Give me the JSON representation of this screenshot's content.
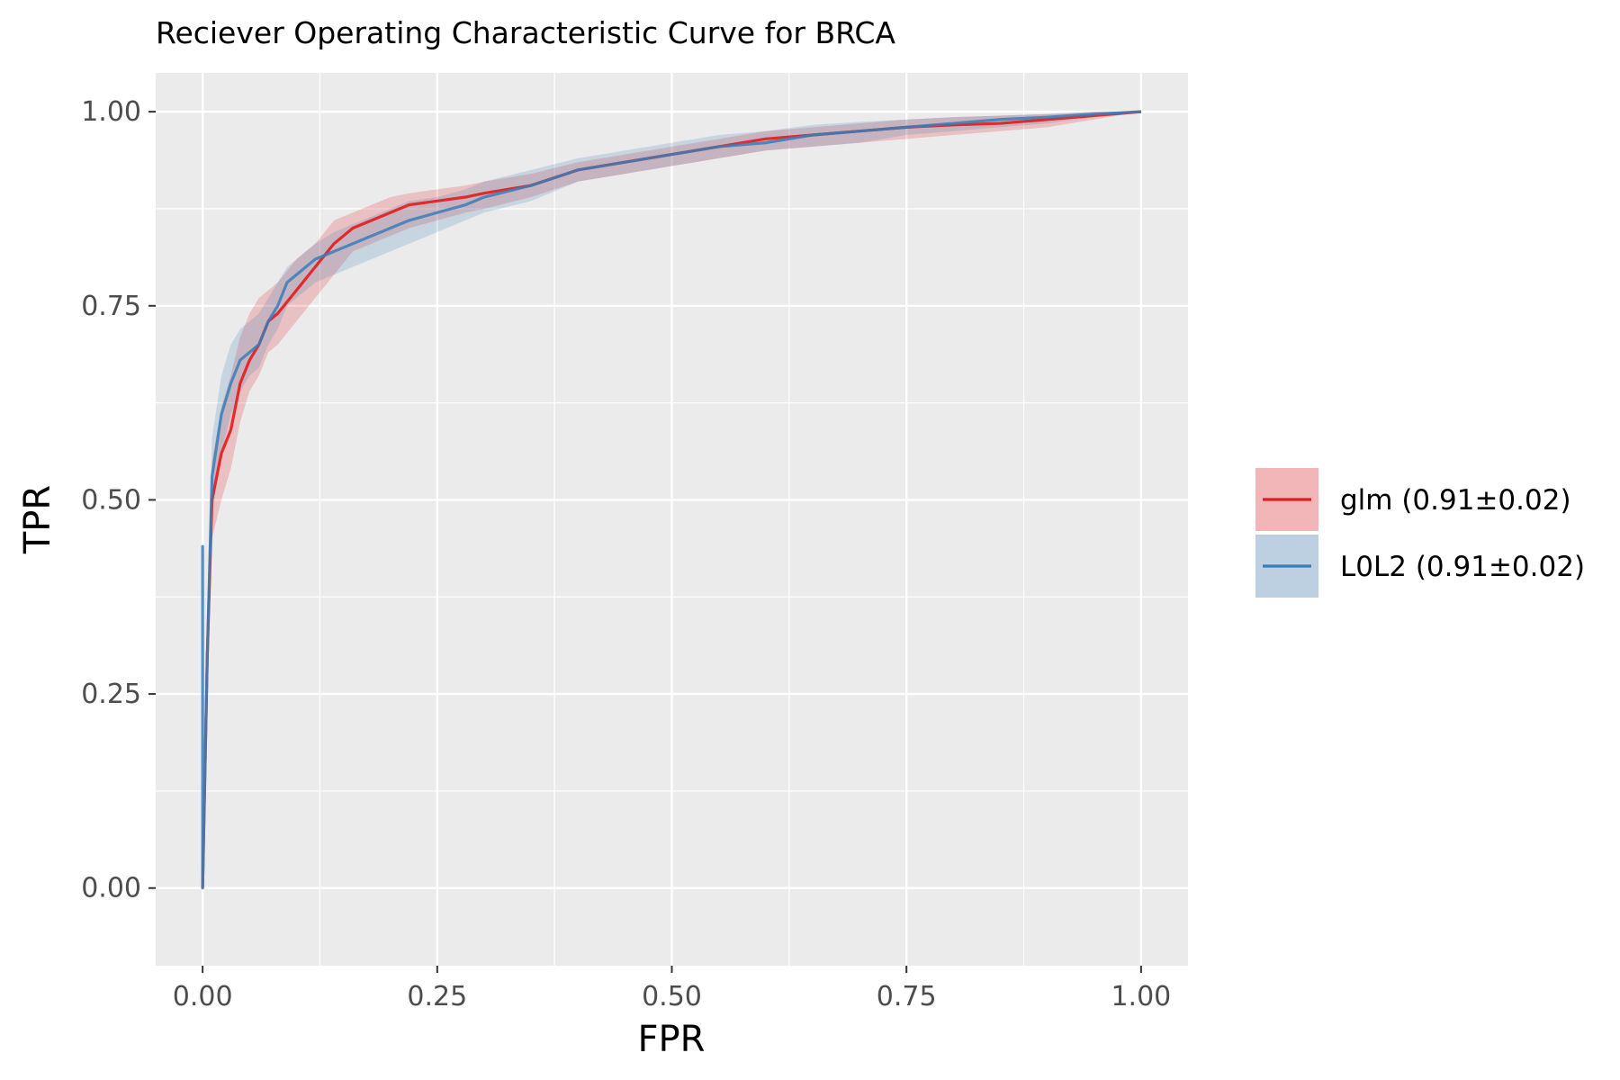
{
  "chart_data": {
    "type": "line",
    "title": "Reciever Operating Characteristic Curve for BRCA",
    "xlabel": "FPR",
    "ylabel": "TPR",
    "xlim": [
      -0.05,
      1.05
    ],
    "ylim": [
      -0.1,
      1.05
    ],
    "x_ticks": [
      "0.00",
      "0.25",
      "0.50",
      "0.75",
      "1.00"
    ],
    "y_ticks": [
      "0.00",
      "0.25",
      "0.50",
      "0.75",
      "1.00"
    ],
    "grid": true,
    "legend_position": "right",
    "series": [
      {
        "name": "glm (0.91±0.02)",
        "color": "#e41a1c",
        "fill_color": "#f2b6b8",
        "x": [
          0.0,
          0.005,
          0.01,
          0.02,
          0.03,
          0.04,
          0.05,
          0.06,
          0.07,
          0.08,
          0.1,
          0.12,
          0.14,
          0.16,
          0.18,
          0.2,
          0.22,
          0.25,
          0.28,
          0.3,
          0.35,
          0.4,
          0.45,
          0.5,
          0.55,
          0.6,
          0.65,
          0.7,
          0.75,
          0.8,
          0.85,
          0.9,
          0.95,
          1.0
        ],
        "y": [
          0.0,
          0.3,
          0.5,
          0.56,
          0.59,
          0.65,
          0.68,
          0.7,
          0.73,
          0.74,
          0.77,
          0.8,
          0.83,
          0.85,
          0.86,
          0.87,
          0.88,
          0.885,
          0.89,
          0.895,
          0.905,
          0.925,
          0.935,
          0.945,
          0.955,
          0.965,
          0.97,
          0.975,
          0.98,
          0.983,
          0.985,
          0.99,
          0.995,
          1.0
        ],
        "lower": [
          0.0,
          0.25,
          0.45,
          0.5,
          0.54,
          0.6,
          0.64,
          0.66,
          0.69,
          0.7,
          0.73,
          0.76,
          0.79,
          0.82,
          0.83,
          0.84,
          0.85,
          0.86,
          0.87,
          0.875,
          0.89,
          0.91,
          0.92,
          0.93,
          0.94,
          0.95,
          0.955,
          0.96,
          0.965,
          0.97,
          0.975,
          0.98,
          0.99,
          1.0
        ],
        "upper": [
          0.0,
          0.36,
          0.55,
          0.62,
          0.66,
          0.71,
          0.74,
          0.76,
          0.77,
          0.78,
          0.81,
          0.83,
          0.86,
          0.87,
          0.88,
          0.89,
          0.895,
          0.9,
          0.905,
          0.91,
          0.92,
          0.935,
          0.945,
          0.955,
          0.965,
          0.975,
          0.98,
          0.985,
          0.99,
          0.993,
          0.995,
          0.997,
          1.0,
          1.0
        ]
      },
      {
        "name": "L0L2 (0.91±0.02)",
        "color": "#377eb8",
        "fill_color": "#bcd0e2",
        "x": [
          0.0,
          0.0,
          0.0,
          0.005,
          0.01,
          0.02,
          0.03,
          0.04,
          0.05,
          0.06,
          0.07,
          0.08,
          0.09,
          0.1,
          0.12,
          0.14,
          0.16,
          0.18,
          0.2,
          0.22,
          0.25,
          0.28,
          0.3,
          0.35,
          0.4,
          0.45,
          0.5,
          0.55,
          0.6,
          0.65,
          0.7,
          0.75,
          0.8,
          0.85,
          0.9,
          0.95,
          1.0
        ],
        "y": [
          0.0,
          0.44,
          0.0,
          0.3,
          0.53,
          0.61,
          0.65,
          0.68,
          0.69,
          0.7,
          0.73,
          0.75,
          0.78,
          0.79,
          0.81,
          0.82,
          0.83,
          0.84,
          0.85,
          0.86,
          0.87,
          0.88,
          0.89,
          0.905,
          0.925,
          0.935,
          0.945,
          0.955,
          0.96,
          0.97,
          0.975,
          0.98,
          0.985,
          0.99,
          0.993,
          0.997,
          1.0
        ],
        "lower": [
          0.0,
          0.44,
          0.0,
          0.25,
          0.48,
          0.56,
          0.61,
          0.64,
          0.66,
          0.67,
          0.7,
          0.72,
          0.75,
          0.76,
          0.78,
          0.79,
          0.8,
          0.81,
          0.82,
          0.83,
          0.845,
          0.86,
          0.87,
          0.885,
          0.91,
          0.92,
          0.93,
          0.94,
          0.95,
          0.955,
          0.96,
          0.97,
          0.975,
          0.98,
          0.985,
          0.993,
          1.0
        ],
        "upper": [
          0.0,
          0.44,
          0.0,
          0.36,
          0.58,
          0.66,
          0.7,
          0.72,
          0.73,
          0.74,
          0.76,
          0.78,
          0.8,
          0.81,
          0.83,
          0.845,
          0.855,
          0.865,
          0.875,
          0.885,
          0.89,
          0.9,
          0.91,
          0.925,
          0.94,
          0.95,
          0.96,
          0.97,
          0.975,
          0.983,
          0.987,
          0.99,
          0.993,
          0.995,
          0.997,
          1.0,
          1.0
        ]
      }
    ]
  }
}
